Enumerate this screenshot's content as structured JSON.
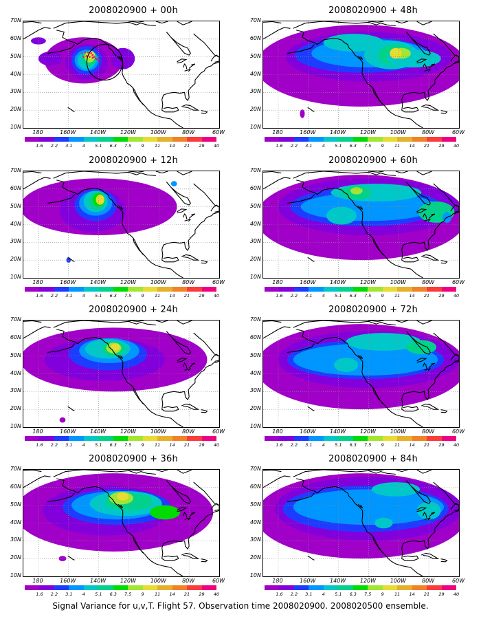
{
  "panels": [
    {
      "title": "2008020900 + 00h"
    },
    {
      "title": "2008020900 + 48h"
    },
    {
      "title": "2008020900 + 12h"
    },
    {
      "title": "2008020900 + 60h"
    },
    {
      "title": "2008020900 + 24h"
    },
    {
      "title": "2008020900 + 72h"
    },
    {
      "title": "2008020900 + 36h"
    },
    {
      "title": "2008020900 + 84h"
    }
  ],
  "axes": {
    "y_ticks": [
      "70N",
      "60N",
      "50N",
      "40N",
      "30N",
      "20N",
      "10N"
    ],
    "x_ticks": [
      "180",
      "160W",
      "140W",
      "120W",
      "100W",
      "80W",
      "60W"
    ]
  },
  "colorbar": {
    "labels": [
      "1.6",
      "2.2",
      "3.1",
      "4",
      "5.1",
      "6.3",
      "7.5",
      "9",
      "11",
      "14",
      "21",
      "29",
      "40"
    ],
    "colors": [
      "#a000c8",
      "#8200dc",
      "#1e3cff",
      "#0096ff",
      "#00c8c8",
      "#00d28c",
      "#00dc00",
      "#a0e632",
      "#e6dc32",
      "#e6af2d",
      "#f08228",
      "#fa3c3c",
      "#f00082"
    ]
  },
  "footer": "Signal Variance for u,v,T. Flight 57. Observation time 2008020900. 2008020500 ensemble."
}
